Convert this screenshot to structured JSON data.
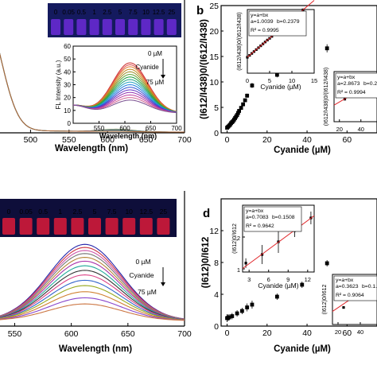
{
  "panels": {
    "b": "b",
    "d": "d"
  },
  "chart_data": [
    {
      "id": "a",
      "type": "line",
      "xlabel": "Wavelength (nm)",
      "xlim": [
        450,
        700
      ],
      "xticks": [
        "500",
        "550",
        "600",
        "650",
        "700"
      ],
      "x_tick_values": [
        500,
        550,
        600,
        650,
        700
      ],
      "vials": [
        "0",
        "0.05",
        "0.5",
        "1",
        "2.5",
        "5",
        "7.5",
        "10",
        "12.5",
        "25"
      ],
      "colors": {
        "peak": "#2d3ec2",
        "tail": "#7a9a55",
        "vial_glow": "#6b2bd8"
      }
    },
    {
      "id": "a-inset",
      "type": "line",
      "xlabel": "Wavelength (nm)",
      "ylabel": "FL Intensity (a.u.)",
      "xlim": [
        500,
        700
      ],
      "ylim": [
        0,
        60
      ],
      "xticks": [
        "550",
        "600",
        "650",
        "700"
      ],
      "x_tick_values": [
        550,
        600,
        650,
        700
      ],
      "yticks": [
        "0",
        "10",
        "20",
        "30",
        "40",
        "50",
        "60"
      ],
      "y_tick_values": [
        0,
        10,
        20,
        30,
        40,
        50,
        60
      ],
      "arrow_top": "0 µM",
      "arrow_mid": "Cyanide",
      "arrow_bottom": "75 µM",
      "peak_x": 610,
      "peak_heights": [
        47,
        45.5,
        44,
        42,
        40,
        38,
        36,
        34,
        32,
        30,
        28,
        26,
        24,
        22,
        20,
        18
      ],
      "colors": [
        "#cc3333",
        "#e05050",
        "#e07a2a",
        "#c08a20",
        "#9a8a20",
        "#5aa030",
        "#20a040",
        "#20a080",
        "#20a0c0",
        "#2080e0",
        "#3050d0",
        "#6030c0",
        "#9030b0",
        "#c040a0",
        "#d06090",
        "#7a5090"
      ]
    },
    {
      "id": "b",
      "type": "scatter",
      "xlabel": "Cyanide (µM)",
      "ylabel": "(I612/I438)0/(I612/I438)",
      "xlim": [
        -3,
        75
      ],
      "ylim": [
        0,
        25
      ],
      "xticks": [
        "0",
        "20",
        "40",
        "60"
      ],
      "x_tick_values": [
        0,
        20,
        40,
        60
      ],
      "yticks": [
        "0",
        "5",
        "10",
        "15",
        "20",
        "25"
      ],
      "y_tick_values": [
        0,
        5,
        10,
        15,
        20,
        25
      ],
      "x": [
        0,
        0.5,
        1,
        1.5,
        2,
        2.5,
        3,
        3.5,
        4,
        4.5,
        5,
        5.5,
        6,
        7,
        8,
        9,
        10,
        12.5,
        25,
        37.5,
        50
      ],
      "y": [
        1.0,
        1.2,
        1.4,
        1.6,
        1.9,
        2.1,
        2.3,
        2.6,
        2.9,
        3.2,
        3.5,
        3.9,
        4.3,
        4.9,
        5.6,
        6.4,
        7.3,
        9.3,
        11.4,
        13.7,
        16.6
      ],
      "err": [
        0.3,
        0.3,
        0.3,
        0.3,
        0.3,
        0.3,
        0.3,
        0.3,
        0.3,
        0.3,
        0.3,
        0.3,
        0.3,
        0.3,
        0.3,
        0.3,
        0.4,
        0.5,
        0.5,
        0.7,
        0.8
      ]
    },
    {
      "id": "b-inset-1",
      "type": "scatter",
      "xlabel": "Cyanide (µM)",
      "ylabel": "(I612/I438)0/(I612/I438)",
      "equation": "y=a+bx",
      "a_text": "a=1.0039",
      "b_text": "b=0.2379",
      "r2_text": "R² = 0.9995",
      "xlim": [
        0,
        15
      ],
      "ylim": [
        0,
        4
      ],
      "xticks": [
        "0",
        "5",
        "10",
        "15"
      ],
      "x_tick_values": [
        0,
        5,
        10,
        15
      ],
      "x": [
        0,
        0.5,
        1,
        1.5,
        2,
        2.5,
        3,
        3.5,
        4,
        4.5,
        5,
        5.5,
        6,
        6.5,
        7,
        7.5,
        8,
        8.5,
        9,
        9.5,
        10,
        12.5
      ],
      "y": [
        1.0,
        1.12,
        1.24,
        1.36,
        1.48,
        1.6,
        1.72,
        1.84,
        1.96,
        2.08,
        2.19,
        2.31,
        2.43,
        2.55,
        2.67,
        2.79,
        2.91,
        3.03,
        3.15,
        3.26,
        3.38,
        3.98
      ],
      "fit": {
        "a": 1.0039,
        "b": 0.2379
      }
    },
    {
      "id": "b-inset-2",
      "type": "scatter",
      "xlabel": "",
      "ylabel": "(I612/I438)0/(I612/I438)",
      "equation": "y=a+bx",
      "a_text": "a=2.8673",
      "b_text": "b=0.2...",
      "r2_text": "R² = 0.9994",
      "xlim": [
        15,
        55
      ],
      "ylim": [
        0,
        20
      ],
      "xticks": [
        "20",
        "40"
      ],
      "x_tick_values": [
        20,
        40
      ],
      "x": [
        25,
        37.5,
        50
      ],
      "y": [
        9.0,
        12.2,
        15.4
      ],
      "fit": {
        "a": 2.8673,
        "b": 0.25
      }
    },
    {
      "id": "d",
      "type": "scatter",
      "xlabel": "Cyanide (µM)",
      "ylabel": "(I612)0/I612",
      "xlim": [
        -3,
        75
      ],
      "ylim": [
        0,
        16
      ],
      "xticks": [
        "0",
        "20",
        "40",
        "60"
      ],
      "x_tick_values": [
        0,
        20,
        40,
        60
      ],
      "yticks": [
        "0",
        "4",
        "8",
        "12"
      ],
      "y_tick_values": [
        0,
        4,
        8,
        12
      ],
      "x": [
        0,
        0.5,
        1,
        2.5,
        5,
        7.5,
        10,
        12.5,
        25,
        37.5,
        50
      ],
      "y": [
        1.0,
        1.05,
        1.1,
        1.25,
        1.6,
        1.9,
        2.35,
        2.7,
        3.7,
        5.2,
        7.9
      ],
      "err": [
        0.5,
        0.4,
        0.4,
        0.4,
        0.4,
        0.4,
        0.5,
        0.5,
        0.4,
        0.4,
        0.4
      ]
    },
    {
      "id": "d-inset-1",
      "type": "scatter",
      "xlabel": "Cyanide (µM)",
      "ylabel": "(I612)0/I612",
      "equation": "y=a+bx",
      "a_text": "a=0.7083",
      "b_text": "b=0.1508",
      "r2_text": "R² = 0.9642",
      "xlim": [
        2,
        13
      ],
      "ylim": [
        0.9,
        3
      ],
      "xticks": [
        "3",
        "6",
        "9",
        "12"
      ],
      "x_tick_values": [
        3,
        6,
        9,
        12
      ],
      "yticks": [
        "1",
        "2"
      ],
      "y_tick_values": [
        1,
        2
      ],
      "x": [
        2.5,
        5,
        7.5,
        10,
        12.5
      ],
      "y": [
        1.18,
        1.45,
        1.85,
        2.2,
        2.6
      ],
      "err": [
        0.15,
        0.3,
        0.35,
        0.2,
        0.2
      ],
      "fit": {
        "a": 0.7083,
        "b": 0.1508
      }
    },
    {
      "id": "d-inset-2",
      "type": "scatter",
      "xlabel": "",
      "ylabel": "(I612)0/I612",
      "equation": "y=a+bx",
      "a_text": "a=0.3623",
      "b_text": "b=0.1...",
      "r2_text": "R² = 0.9064",
      "xlim": [
        15,
        55
      ],
      "ylim": [
        0,
        10
      ],
      "xticks": [
        "20",
        "40"
      ],
      "x_tick_values": [
        20,
        40
      ],
      "x": [
        25,
        37.5,
        50
      ],
      "y": [
        3.4,
        5.8,
        7.9
      ],
      "fit": {
        "a": 0.3623,
        "b": 0.15
      }
    },
    {
      "id": "c",
      "type": "line",
      "xlabel": "Wavelength (nm)",
      "xlim": [
        530,
        700
      ],
      "xticks": [
        "550",
        "600",
        "650",
        "700"
      ],
      "x_tick_values": [
        550,
        600,
        650,
        700
      ],
      "arrow_top": "0 µM",
      "arrow_mid": "Cyanide",
      "arrow_bottom": "75 µM",
      "vials": [
        "0",
        "0.05",
        "0.5",
        "1",
        "2.5",
        "5",
        "7.5",
        "10",
        "12.5",
        "25"
      ],
      "peak_x": 612,
      "peak_heights": [
        100,
        96,
        92,
        88,
        83,
        78,
        72,
        66,
        60,
        53,
        46,
        38,
        30,
        22
      ],
      "colors": [
        "#2222aa",
        "#cc3344",
        "#cc55aa",
        "#777777",
        "#b8863a",
        "#aa33aa",
        "#22aa99",
        "#333333",
        "#dd4488",
        "#3366cc",
        "#99aa22",
        "#d08030",
        "#8844cc",
        "#cc7744"
      ],
      "vial_glow": "#d01a3a"
    }
  ]
}
